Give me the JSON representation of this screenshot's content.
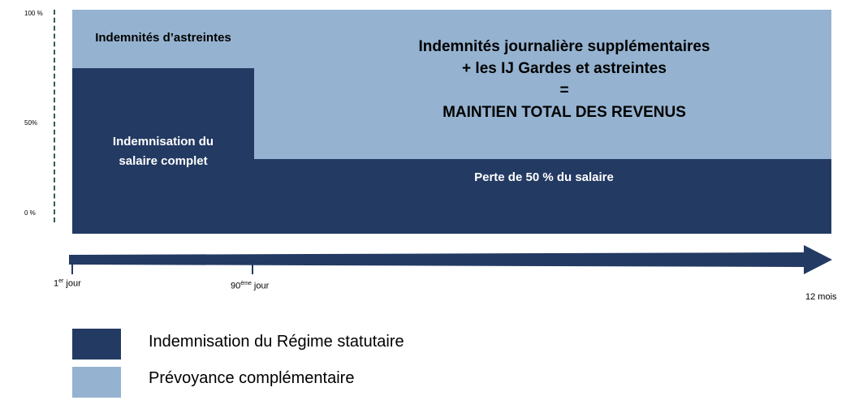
{
  "colors": {
    "regime": "#233a63",
    "prevoyance": "#95b3d0",
    "axis_dash": "#2f5a5a"
  },
  "y_axis": {
    "ticks": [
      "100 %",
      "50%",
      "0 %"
    ]
  },
  "blocks": {
    "astreintes_label": "Indemnités d’astreintes",
    "salaire_complet_line1": "Indemnisation du",
    "salaire_complet_line2": "salaire complet",
    "ij_line1": "Indemnités journalière supplémentaires",
    "ij_line2": "+ les IJ Gardes et astreintes",
    "ij_line3": "=",
    "ij_line4": "MAINTIEN TOTAL DES REVENUS",
    "perte_label": "Perte de 50 % du salaire"
  },
  "timeline": {
    "start_prefix": "1",
    "start_sup": "er",
    "start_suffix": " jour",
    "mid_prefix": "90",
    "mid_sup": "ème",
    "mid_suffix": " jour",
    "end_label": "12 mois"
  },
  "legend": {
    "items": [
      {
        "label": "Indemnisation du Régime statutaire"
      },
      {
        "label": "Prévoyance complémentaire"
      }
    ]
  }
}
